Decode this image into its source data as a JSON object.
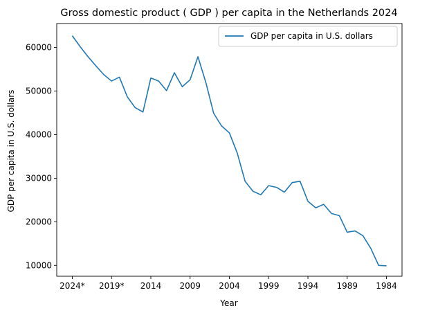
{
  "chart_data": {
    "type": "line",
    "title": "Gross domestic product ( GDP ) per capita in the Netherlands 2024",
    "xlabel": "Year",
    "ylabel": "GDP per capita in U.S. dollars",
    "x_reversed": true,
    "x_tick_labels": [
      "2024*",
      "2019*",
      "2014",
      "2009",
      "2004",
      "1999",
      "1994",
      "1989",
      "1984"
    ],
    "y_ticks": [
      10000,
      20000,
      30000,
      40000,
      50000,
      60000
    ],
    "ylim": [
      7500,
      65500
    ],
    "legend_position": "top-right",
    "grid": false,
    "color": "#1f77b4",
    "series": [
      {
        "name": "GDP per capita in U.S. dollars",
        "x": [
          "2024*",
          "2023*",
          "2022*",
          "2021*",
          "2020*",
          "2019*",
          "2018",
          "2017",
          "2016",
          "2015",
          "2014",
          "2013",
          "2012",
          "2011",
          "2010",
          "2009",
          "2008",
          "2007",
          "2006",
          "2005",
          "2004",
          "2003",
          "2002",
          "2001",
          "2000",
          "1999",
          "1998",
          "1997",
          "1996",
          "1995",
          "1994",
          "1993",
          "1992",
          "1991",
          "1990",
          "1989",
          "1988",
          "1987",
          "1986",
          "1985",
          "1984"
        ],
        "values": [
          62700,
          60200,
          57900,
          55800,
          53800,
          52300,
          53200,
          48700,
          46200,
          45200,
          53000,
          52300,
          50100,
          54200,
          51000,
          52600,
          57900,
          52000,
          44900,
          42000,
          40400,
          35800,
          29300,
          27000,
          26200,
          28300,
          27900,
          26800,
          29000,
          29300,
          24700,
          23200,
          24000,
          21900,
          21400,
          17600,
          17900,
          16800,
          13900,
          10000,
          9900
        ]
      }
    ]
  }
}
